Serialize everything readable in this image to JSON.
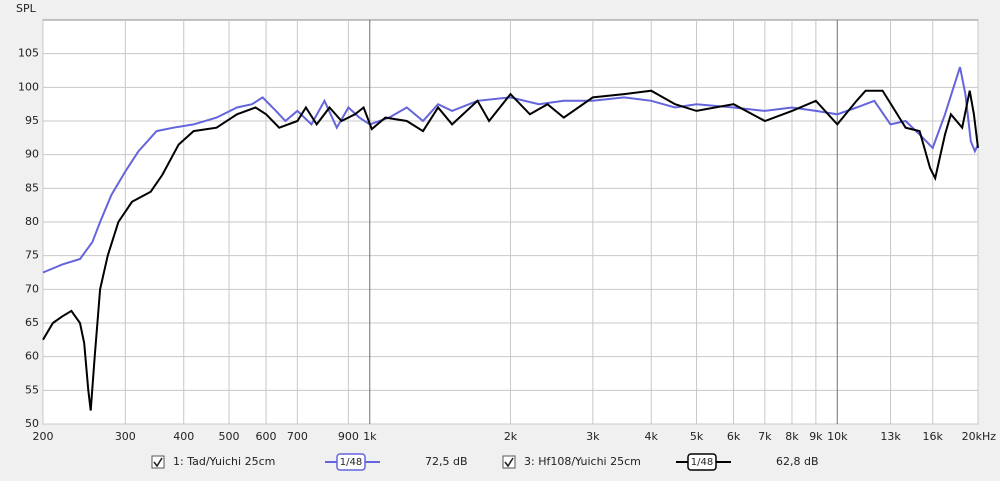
{
  "chart_data": {
    "type": "line",
    "y_label": "SPL",
    "log_x": true,
    "grid": true,
    "xlim": [
      200,
      20000
    ],
    "ylim": [
      50,
      110
    ],
    "xticks": [
      200,
      300,
      400,
      500,
      600,
      700,
      900,
      {
        "value": 1000,
        "label": "1k"
      },
      {
        "value": 2000,
        "label": "2k"
      },
      {
        "value": 3000,
        "label": "3k"
      },
      {
        "value": 4000,
        "label": "4k"
      },
      {
        "value": 5000,
        "label": "5k"
      },
      {
        "value": 6000,
        "label": "6k"
      },
      {
        "value": 7000,
        "label": "7k"
      },
      {
        "value": 8000,
        "label": "8k"
      },
      {
        "value": 9000,
        "label": "9k"
      },
      {
        "value": 10000,
        "label": "10k"
      },
      {
        "value": 13000,
        "label": "13k"
      },
      {
        "value": 16000,
        "label": "16k"
      },
      {
        "value": 20000,
        "label": "20kHz"
      }
    ],
    "yticks": [
      50,
      55,
      60,
      65,
      70,
      75,
      80,
      85,
      90,
      95,
      100,
      105
    ],
    "series": [
      {
        "name": "1: Tad/Yuichi 25cm",
        "color": "#6464dc",
        "smoothing": "1/48",
        "level": "72,5 dB",
        "x": [
          200,
          220,
          240,
          255,
          265,
          280,
          300,
          320,
          350,
          380,
          420,
          470,
          520,
          560,
          590,
          630,
          660,
          700,
          750,
          800,
          850,
          900,
          950,
          1000,
          1100,
          1200,
          1300,
          1400,
          1500,
          1700,
          2000,
          2300,
          2600,
          3000,
          3500,
          4000,
          4500,
          5000,
          6000,
          7000,
          8000,
          9000,
          10000,
          11000,
          12000,
          13000,
          14000,
          15000,
          16000,
          17000,
          18300,
          18800,
          19300,
          19700,
          20000
        ],
        "values": [
          72.5,
          73.7,
          74.5,
          77,
          80,
          84,
          87.5,
          90.5,
          93.5,
          94,
          94.5,
          95.5,
          97,
          97.5,
          98.5,
          96.5,
          95,
          96.5,
          94.5,
          98,
          94,
          97,
          95.5,
          94.5,
          95.5,
          97,
          95,
          97.5,
          96.5,
          98,
          98.5,
          97.5,
          98,
          98,
          98.5,
          98,
          97,
          97.5,
          97,
          96.5,
          97,
          96.5,
          96,
          97,
          98,
          94.5,
          95,
          93,
          91,
          96,
          103,
          99,
          92,
          90.5,
          91.5
        ]
      },
      {
        "name": "3: Hf108/Yuichi 25cm",
        "color": "#000000",
        "smoothing": "1/48",
        "level": "62,8 dB",
        "x": [
          200,
          210,
          220,
          230,
          240,
          245,
          250,
          253,
          258,
          265,
          275,
          290,
          310,
          340,
          360,
          390,
          420,
          470,
          520,
          570,
          600,
          640,
          700,
          730,
          770,
          820,
          870,
          930,
          970,
          1010,
          1080,
          1200,
          1300,
          1400,
          1500,
          1700,
          1800,
          2000,
          2200,
          2400,
          2600,
          3000,
          3500,
          4000,
          4500,
          5000,
          6000,
          7000,
          8000,
          9000,
          10000,
          11000,
          11500,
          12500,
          14000,
          15000,
          15800,
          16200,
          17000,
          17500,
          18500,
          19200,
          19600,
          20000
        ],
        "values": [
          62.5,
          65,
          66,
          66.8,
          65,
          62,
          55,
          52,
          60,
          70,
          75,
          80,
          83,
          84.5,
          87,
          91.5,
          93.5,
          94,
          96,
          97,
          96,
          94,
          95,
          97,
          94.5,
          97,
          95,
          96,
          97,
          93.8,
          95.5,
          95,
          93.5,
          97,
          94.5,
          98,
          95,
          99,
          96,
          97.5,
          95.5,
          98.5,
          99,
          99.5,
          97.5,
          96.5,
          97.5,
          95,
          96.5,
          98,
          94.5,
          98,
          99.5,
          99.5,
          94,
          93.5,
          88,
          86.5,
          93,
          96,
          94,
          99.5,
          96,
          91
        ]
      }
    ]
  }
}
